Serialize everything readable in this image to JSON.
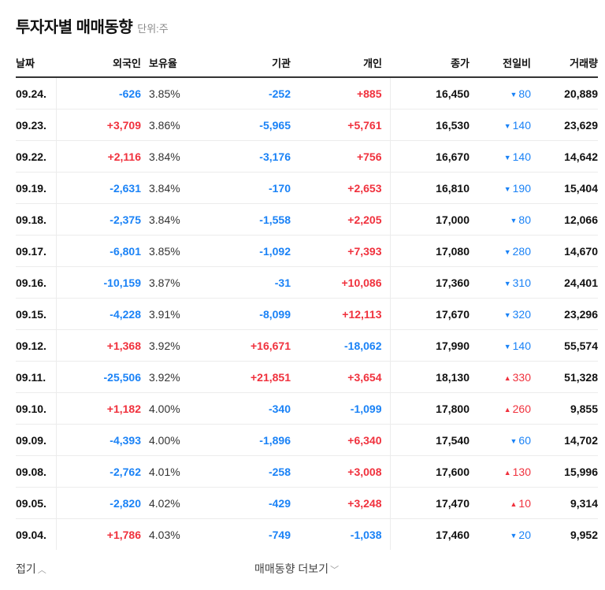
{
  "header": {
    "title": "투자자별 매매동향",
    "unit": "단위:주"
  },
  "colors": {
    "positive": "#f0313d",
    "negative": "#1a82f6",
    "text": "#111111"
  },
  "table": {
    "columns": [
      "날짜",
      "외국인",
      "보유율",
      "기관",
      "개인",
      "종가",
      "전일비",
      "거래량"
    ],
    "rows": [
      {
        "date": "09.24.",
        "foreign": "-626",
        "foreign_sign": "neg",
        "rate": "3.85%",
        "inst": "-252",
        "inst_sign": "neg",
        "indiv": "+885",
        "indiv_sign": "pos",
        "close": "16,450",
        "chg_dir": "down",
        "chg_icon": "▼",
        "chg": "80",
        "vol": "20,889"
      },
      {
        "date": "09.23.",
        "foreign": "+3,709",
        "foreign_sign": "pos",
        "rate": "3.86%",
        "inst": "-5,965",
        "inst_sign": "neg",
        "indiv": "+5,761",
        "indiv_sign": "pos",
        "close": "16,530",
        "chg_dir": "down",
        "chg_icon": "▼",
        "chg": "140",
        "vol": "23,629"
      },
      {
        "date": "09.22.",
        "foreign": "+2,116",
        "foreign_sign": "pos",
        "rate": "3.84%",
        "inst": "-3,176",
        "inst_sign": "neg",
        "indiv": "+756",
        "indiv_sign": "pos",
        "close": "16,670",
        "chg_dir": "down",
        "chg_icon": "▼",
        "chg": "140",
        "vol": "14,642"
      },
      {
        "date": "09.19.",
        "foreign": "-2,631",
        "foreign_sign": "neg",
        "rate": "3.84%",
        "inst": "-170",
        "inst_sign": "neg",
        "indiv": "+2,653",
        "indiv_sign": "pos",
        "close": "16,810",
        "chg_dir": "down",
        "chg_icon": "▼",
        "chg": "190",
        "vol": "15,404"
      },
      {
        "date": "09.18.",
        "foreign": "-2,375",
        "foreign_sign": "neg",
        "rate": "3.84%",
        "inst": "-1,558",
        "inst_sign": "neg",
        "indiv": "+2,205",
        "indiv_sign": "pos",
        "close": "17,000",
        "chg_dir": "down",
        "chg_icon": "▼",
        "chg": "80",
        "vol": "12,066"
      },
      {
        "date": "09.17.",
        "foreign": "-6,801",
        "foreign_sign": "neg",
        "rate": "3.85%",
        "inst": "-1,092",
        "inst_sign": "neg",
        "indiv": "+7,393",
        "indiv_sign": "pos",
        "close": "17,080",
        "chg_dir": "down",
        "chg_icon": "▼",
        "chg": "280",
        "vol": "14,670"
      },
      {
        "date": "09.16.",
        "foreign": "-10,159",
        "foreign_sign": "neg",
        "rate": "3.87%",
        "inst": "-31",
        "inst_sign": "neg",
        "indiv": "+10,086",
        "indiv_sign": "pos",
        "close": "17,360",
        "chg_dir": "down",
        "chg_icon": "▼",
        "chg": "310",
        "vol": "24,401"
      },
      {
        "date": "09.15.",
        "foreign": "-4,228",
        "foreign_sign": "neg",
        "rate": "3.91%",
        "inst": "-8,099",
        "inst_sign": "neg",
        "indiv": "+12,113",
        "indiv_sign": "pos",
        "close": "17,670",
        "chg_dir": "down",
        "chg_icon": "▼",
        "chg": "320",
        "vol": "23,296"
      },
      {
        "date": "09.12.",
        "foreign": "+1,368",
        "foreign_sign": "pos",
        "rate": "3.92%",
        "inst": "+16,671",
        "inst_sign": "pos",
        "indiv": "-18,062",
        "indiv_sign": "neg",
        "close": "17,990",
        "chg_dir": "down",
        "chg_icon": "▼",
        "chg": "140",
        "vol": "55,574"
      },
      {
        "date": "09.11.",
        "foreign": "-25,506",
        "foreign_sign": "neg",
        "rate": "3.92%",
        "inst": "+21,851",
        "inst_sign": "pos",
        "indiv": "+3,654",
        "indiv_sign": "pos",
        "close": "18,130",
        "chg_dir": "up",
        "chg_icon": "▲",
        "chg": "330",
        "vol": "51,328"
      },
      {
        "date": "09.10.",
        "foreign": "+1,182",
        "foreign_sign": "pos",
        "rate": "4.00%",
        "inst": "-340",
        "inst_sign": "neg",
        "indiv": "-1,099",
        "indiv_sign": "neg",
        "close": "17,800",
        "chg_dir": "up",
        "chg_icon": "▲",
        "chg": "260",
        "vol": "9,855"
      },
      {
        "date": "09.09.",
        "foreign": "-4,393",
        "foreign_sign": "neg",
        "rate": "4.00%",
        "inst": "-1,896",
        "inst_sign": "neg",
        "indiv": "+6,340",
        "indiv_sign": "pos",
        "close": "17,540",
        "chg_dir": "down",
        "chg_icon": "▼",
        "chg": "60",
        "vol": "14,702"
      },
      {
        "date": "09.08.",
        "foreign": "-2,762",
        "foreign_sign": "neg",
        "rate": "4.01%",
        "inst": "-258",
        "inst_sign": "neg",
        "indiv": "+3,008",
        "indiv_sign": "pos",
        "close": "17,600",
        "chg_dir": "up",
        "chg_icon": "▲",
        "chg": "130",
        "vol": "15,996"
      },
      {
        "date": "09.05.",
        "foreign": "-2,820",
        "foreign_sign": "neg",
        "rate": "4.02%",
        "inst": "-429",
        "inst_sign": "neg",
        "indiv": "+3,248",
        "indiv_sign": "pos",
        "close": "17,470",
        "chg_dir": "up",
        "chg_icon": "▲",
        "chg": "10",
        "vol": "9,314"
      },
      {
        "date": "09.04.",
        "foreign": "+1,786",
        "foreign_sign": "pos",
        "rate": "4.03%",
        "inst": "-749",
        "inst_sign": "neg",
        "indiv": "-1,038",
        "indiv_sign": "neg",
        "close": "17,460",
        "chg_dir": "down",
        "chg_icon": "▼",
        "chg": "20",
        "vol": "9,952"
      }
    ]
  },
  "footer": {
    "fold_label": "접기",
    "fold_icon": "︿",
    "more_label": "매매동향 더보기",
    "more_icon": "﹀"
  }
}
